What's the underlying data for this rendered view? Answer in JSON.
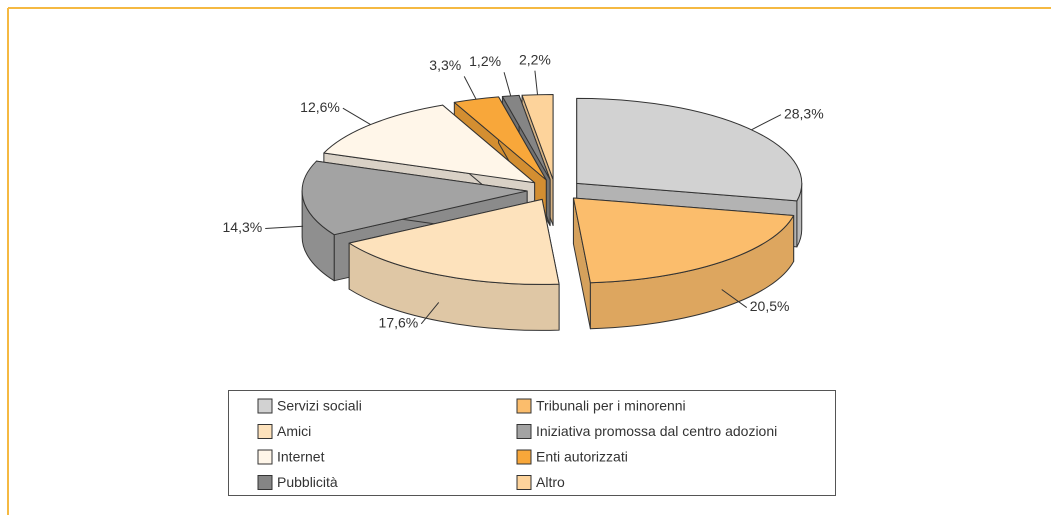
{
  "chart_data": {
    "type": "pie3d",
    "categories": [
      "Servizi sociali",
      "Tribunali per i minorenni",
      "Amici",
      "Iniziativa promossa dal centro adozioni",
      "Internet",
      "Enti autorizzati",
      "Pubblicità",
      "Altro"
    ],
    "values": [
      28.3,
      20.5,
      17.6,
      14.3,
      12.6,
      3.3,
      1.2,
      2.2
    ],
    "value_labels": [
      "28,3%",
      "20,5%",
      "17,6%",
      "14,3%",
      "12,6%",
      "3,3%",
      "1,2%",
      "2,2%"
    ],
    "colors": [
      "#d2d2d2",
      "#fbbd6c",
      "#fde2bc",
      "#a3a3a3",
      "#fff6e9",
      "#f8a73a",
      "#858585",
      "#fdd39b"
    ],
    "legend": "bottom"
  }
}
